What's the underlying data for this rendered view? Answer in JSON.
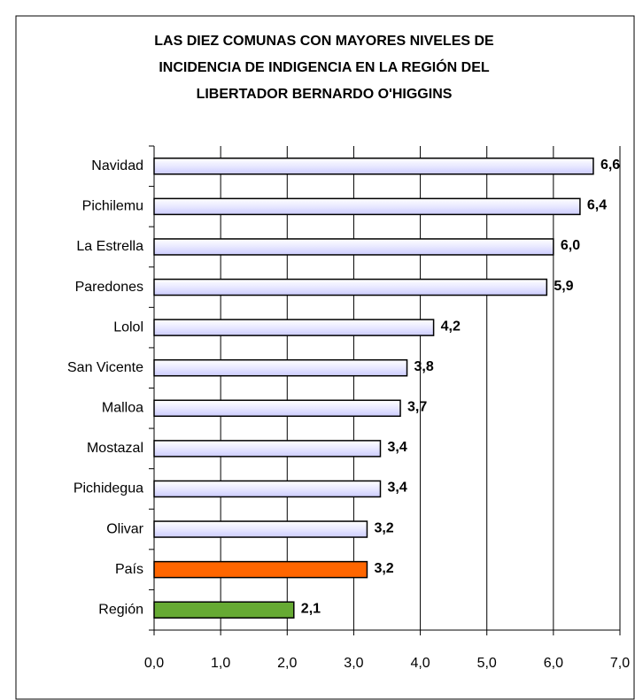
{
  "chart_data": {
    "type": "bar",
    "orientation": "horizontal",
    "title": [
      "LAS DIEZ COMUNAS  CON MAYORES NIVELES DE",
      "INCIDENCIA DE INDIGENCIA EN LA REGIÓN DEL",
      "LIBERTADOR BERNARDO O'HIGGINS"
    ],
    "categories": [
      "Navidad",
      "Pichilemu",
      "La Estrella",
      "Paredones",
      "Lolol",
      "San Vicente",
      "Malloa",
      "Mostazal",
      "Pichidegua",
      "Olivar",
      "País",
      "Región"
    ],
    "values": [
      6.6,
      6.4,
      6.0,
      5.9,
      4.2,
      3.8,
      3.7,
      3.4,
      3.4,
      3.2,
      3.2,
      2.1
    ],
    "value_labels": [
      "6,6",
      "6,4",
      "6,0",
      "5,9",
      "4,2",
      "3,8",
      "3,7",
      "3,4",
      "3,4",
      "3,2",
      "3,2",
      "2,1"
    ],
    "colors": [
      "#ccccff",
      "#ccccff",
      "#ccccff",
      "#ccccff",
      "#ccccff",
      "#ccccff",
      "#ccccff",
      "#ccccff",
      "#ccccff",
      "#ccccff",
      "#ff6600",
      "#66aa33"
    ],
    "xlim": [
      0,
      7
    ],
    "xticks": [
      {
        "value": 0,
        "label": "0,0"
      },
      {
        "value": 1,
        "label": "1,0"
      },
      {
        "value": 2,
        "label": "2,0"
      },
      {
        "value": 3,
        "label": "3,0"
      },
      {
        "value": 4,
        "label": "4,0"
      },
      {
        "value": 5,
        "label": "5,0"
      },
      {
        "value": 6,
        "label": "6,0"
      },
      {
        "value": 7,
        "label": "7,0"
      }
    ],
    "grid": true
  }
}
